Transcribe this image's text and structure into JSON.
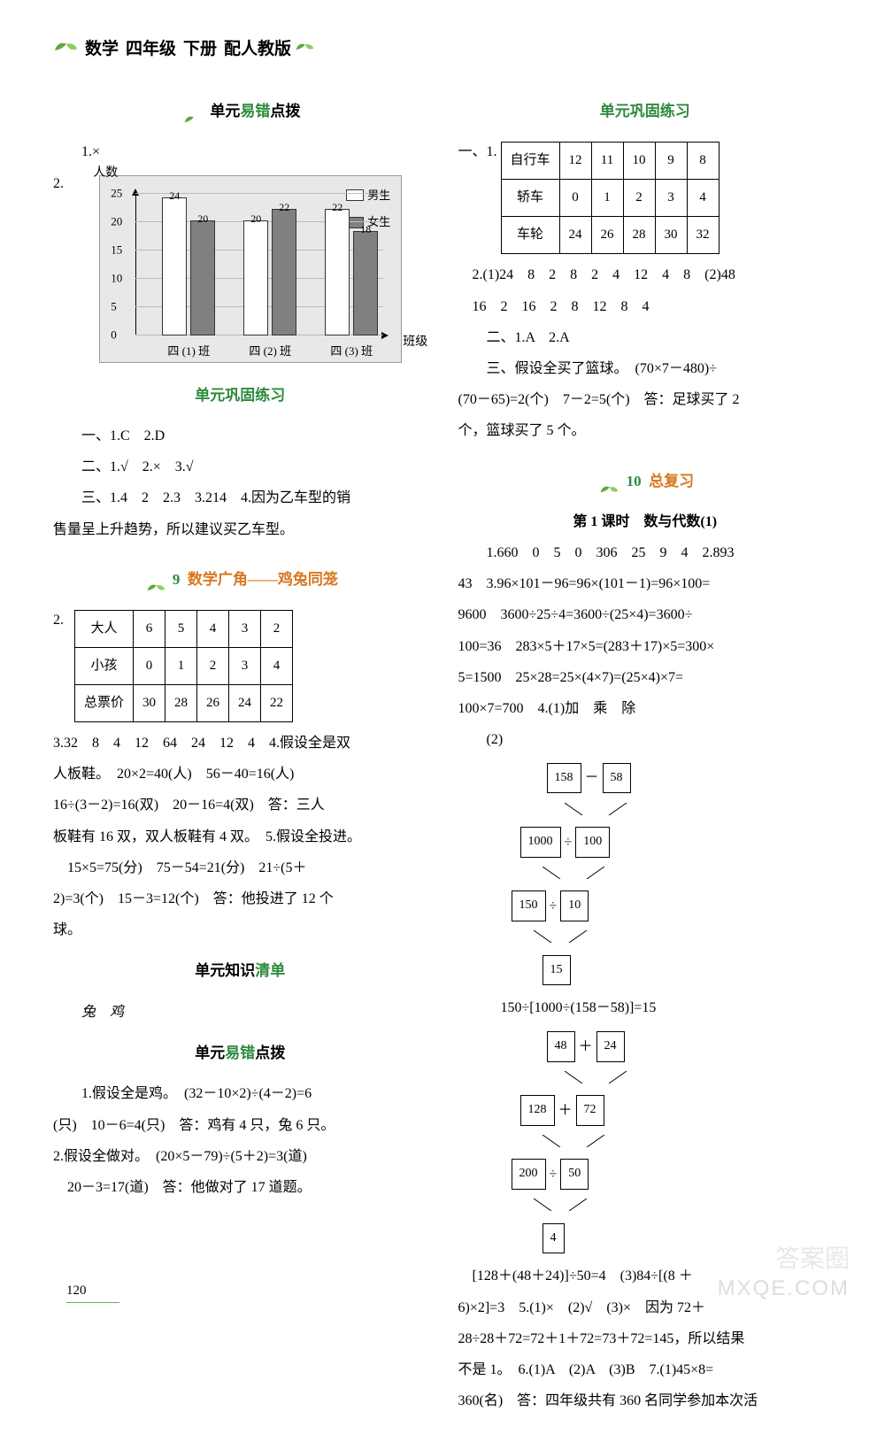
{
  "header": {
    "subject": "数学",
    "grade": "四年级",
    "volume": "下册",
    "edition": "配人教版"
  },
  "left": {
    "sectA_title_pre": "单元",
    "sectA_title_mid": "易错",
    "sectA_title_post": "点拨",
    "q1": "1.×",
    "q2_label": "2.",
    "chart": {
      "ylabel": "人数",
      "xlabel": "班级",
      "legend_male": "男生",
      "legend_female": "女生",
      "yticks": [
        "0",
        "5",
        "10",
        "15",
        "20",
        "25"
      ],
      "ymax": 25,
      "colors": {
        "male": "#ffffff",
        "female": "#808080",
        "bg": "#e8e8e8"
      },
      "groups": [
        {
          "label": "四 (1) 班",
          "male": 24,
          "female": 20
        },
        {
          "label": "四 (2) 班",
          "male": 20,
          "female": 22
        },
        {
          "label": "四 (3) 班",
          "male": 22,
          "female": 18
        }
      ]
    },
    "sectB_title": "单元巩固练习",
    "sectB": {
      "l1": "一、1.C　2.D",
      "l2": "二、1.√　2.×　3.√",
      "l3": "三、1.4　2　2.3　3.214　4.因为乙车型的销",
      "l4": "售量呈上升趋势，所以建议买乙车型。"
    },
    "sectC_num": "9",
    "sectC_title": "数学广角——鸡兔同笼",
    "table1": {
      "q": "2.",
      "rows": [
        [
          "大人",
          "6",
          "5",
          "4",
          "3",
          "2"
        ],
        [
          "小孩",
          "0",
          "1",
          "2",
          "3",
          "4"
        ],
        [
          "总票价",
          "30",
          "28",
          "26",
          "24",
          "22"
        ]
      ]
    },
    "body1": "3.32　8　4　12　64　24　12　4　4.假设全是双",
    "body2": "人板鞋。　20×2=40(人)　56－40=16(人)",
    "body3": "16÷(3－2)=16(双)　20－16=4(双)　答：三人",
    "body4": "板鞋有 16 双，双人板鞋有 4 双。　5.假设全投进。",
    "body5": "　15×5=75(分)　75－54=21(分)　21÷(5＋",
    "body6": "2)=3(个)　15－3=12(个)　答：他投进了 12 个",
    "body7": "球。",
    "sectD_title_pre": "单元知识",
    "sectD_title_post": "清单",
    "sectD_body": "兔　鸡",
    "sectE_title_pre": "单元",
    "sectE_title_mid": "易错",
    "sectE_title_post": "点拨",
    "sectE1": "1.假设全是鸡。　(32－10×2)÷(4－2)=6",
    "sectE2": "(只)　10－6=4(只)　答：鸡有 4 只，兔 6 只。",
    "sectE3": "2.假设全做对。　(20×5－79)÷(5＋2)=3(道)",
    "sectE4": "　20－3=17(道)　答：他做对了 17 道题。"
  },
  "right": {
    "sectA_title": "单元巩固练习",
    "table2": {
      "q": "一、1.",
      "rows": [
        [
          "自行车",
          "12",
          "11",
          "10",
          "9",
          "8"
        ],
        [
          "轿车",
          "0",
          "1",
          "2",
          "3",
          "4"
        ],
        [
          "车轮",
          "24",
          "26",
          "28",
          "30",
          "32"
        ]
      ]
    },
    "r1": "　2.(1)24　8　2　8　2　4　12　4　8　(2)48",
    "r2": "　16　2　16　2　8　12　8　4",
    "r3": "二、1.A　2.A",
    "r4": "三、假设全买了篮球。　(70×7－480)÷",
    "r5": "(70－65)=2(个)　7－2=5(个)　答：足球买了 2",
    "r6": "个，篮球买了 5 个。",
    "sectB_num": "10",
    "sectB_title": "总复习",
    "sectB_sub": "第 1 课时　数与代数(1)",
    "b1": "1.660　0　5　0　306　25　9　4　2.893",
    "b2": "43　3.96×101－96=96×(101－1)=96×100=",
    "b3": "9600　3600÷25÷4=3600÷(25×4)=3600÷",
    "b4": "100=36　283×5＋17×5=(283＋17)×5=300×",
    "b5": "5=1500　25×28=25×(4×7)=(25×4)×7=",
    "b6": "100×7=700　4.(1)加　乘　除",
    "b7": "　　(2)",
    "flow1": {
      "r1a": "158",
      "r1op": "－",
      "r1b": "58",
      "r2a": "1000",
      "r2op": "÷",
      "r2b": "100",
      "r3a": "150",
      "r3op": "÷",
      "r3b": "10",
      "r4": "15",
      "eq": "150÷[1000÷(158－58)]=15"
    },
    "flow2": {
      "r1a": "48",
      "r1op": "＋",
      "r1b": "24",
      "r2a": "128",
      "r2op": "＋",
      "r2b": "72",
      "r3a": "200",
      "r3op": "÷",
      "r3b": "50",
      "r4": "4"
    },
    "c1": "　[128＋(48＋24)]÷50=4　(3)84÷[(8 ＋",
    "c2": "6)×2]=3　5.(1)×　(2)√　(3)×　因为 72＋",
    "c3": "28÷28＋72=72＋1＋72=73＋72=145，所以结果",
    "c4": "不是 1。　6.(1)A　(2)A　(3)B　7.(1)45×8=",
    "c5": "360(名)　答：四年级共有 360 名同学参加本次活"
  },
  "page_num": "120",
  "watermark1": "MXQE.COM",
  "watermark2": "答案圈"
}
